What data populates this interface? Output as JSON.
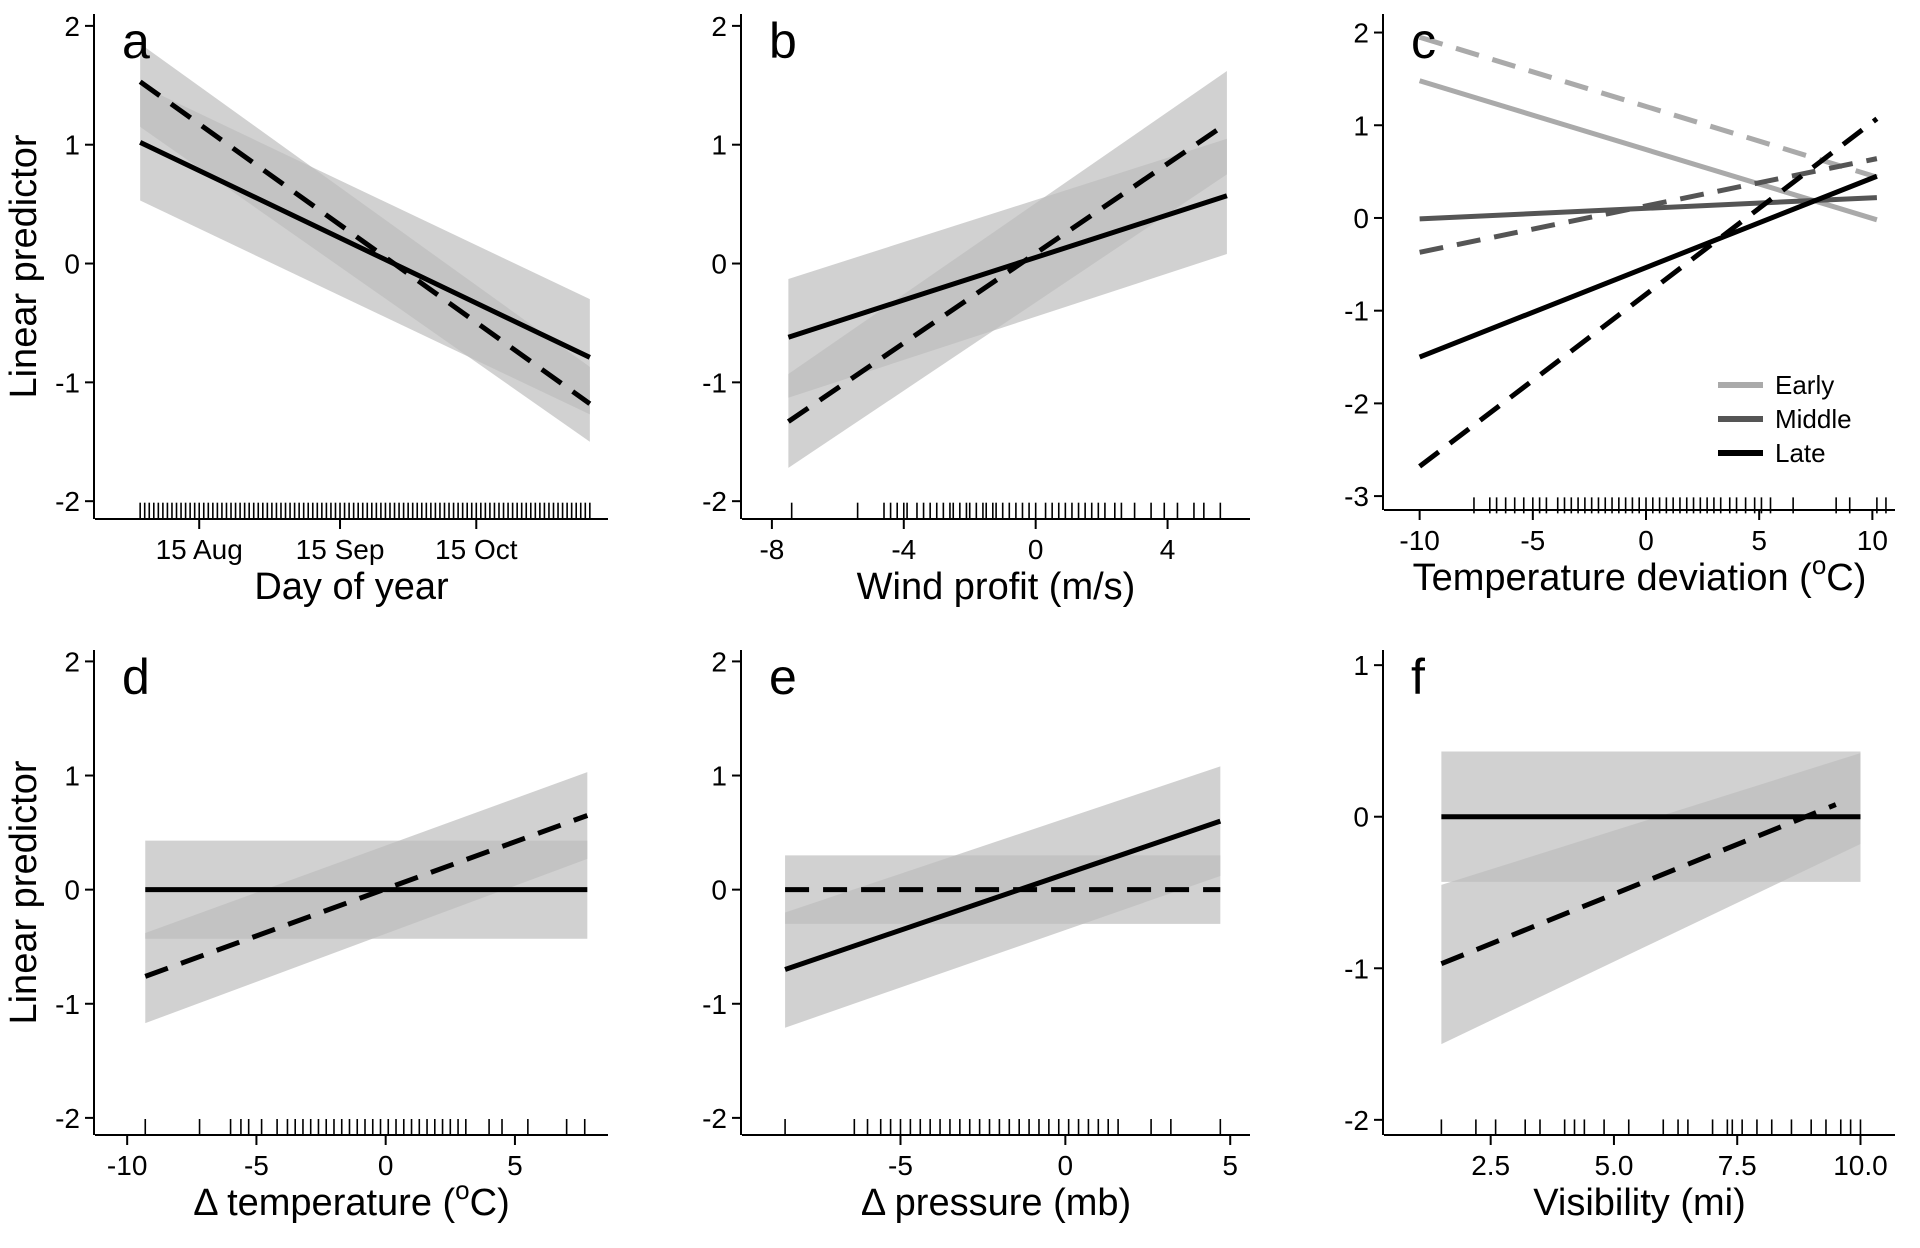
{
  "figure": {
    "ylabel": "Linear predictor"
  },
  "chart_data": [
    {
      "panel": "a",
      "type": "line",
      "xlabel": "Day of year",
      "ylabel": "Linear predictor",
      "xlim": [
        210,
        317
      ],
      "ylim": [
        -2.15,
        2.1
      ],
      "xticks": [
        {
          "v": 227,
          "label": "15 Aug"
        },
        {
          "v": 258,
          "label": "15 Sep"
        },
        {
          "v": 288,
          "label": "15 Oct"
        }
      ],
      "yticks": [
        {
          "v": 2,
          "label": "2"
        },
        {
          "v": 1,
          "label": "1"
        },
        {
          "v": 0,
          "label": "0"
        },
        {
          "v": -1,
          "label": "-1"
        },
        {
          "v": -2,
          "label": "-2"
        }
      ],
      "bands": [
        {
          "x": [
            214,
            313
          ],
          "lo": [
            0.53,
            -1.27
          ],
          "hi": [
            1.5,
            -0.3
          ],
          "color": "#bdbdbd"
        },
        {
          "x": [
            214,
            313
          ],
          "lo": [
            1.15,
            -1.5
          ],
          "hi": [
            1.85,
            -0.87
          ],
          "color": "#bdbdbd"
        }
      ],
      "series": [
        {
          "style": "solid",
          "color": "#000000",
          "x": [
            214,
            313
          ],
          "y": [
            1.02,
            -0.79
          ]
        },
        {
          "style": "dashed",
          "color": "#000000",
          "x": [
            214,
            313
          ],
          "y": [
            1.53,
            -1.18
          ]
        }
      ],
      "rug": {
        "y": -2.08,
        "x": [
          214,
          215,
          216,
          217,
          218,
          219,
          220,
          221,
          222,
          223,
          224,
          225,
          226,
          227,
          228,
          229,
          230,
          231,
          232,
          233,
          234,
          235,
          236,
          237,
          238,
          239,
          240,
          241,
          242,
          243,
          244,
          245,
          246,
          247,
          248,
          249,
          250,
          251,
          252,
          253,
          254,
          255,
          256,
          257,
          258,
          259,
          260,
          261,
          262,
          263,
          264,
          265,
          266,
          267,
          268,
          269,
          270,
          271,
          272,
          273,
          274,
          275,
          276,
          277,
          278,
          279,
          280,
          281,
          282,
          283,
          284,
          285,
          286,
          287,
          288,
          289,
          290,
          291,
          292,
          293,
          294,
          295,
          296,
          297,
          298,
          299,
          300,
          301,
          302,
          303,
          304,
          305,
          306,
          307,
          308,
          309,
          310,
          311,
          312,
          313
        ]
      }
    },
    {
      "panel": "b",
      "type": "line",
      "xlabel": "Wind profit (m/s)",
      "ylabel": "",
      "xlim": [
        -8.3,
        6.5
      ],
      "ylim": [
        -2.15,
        2.1
      ],
      "xticks": [
        {
          "v": -8,
          "label": "-8"
        },
        {
          "v": -4,
          "label": "-4"
        },
        {
          "v": 0,
          "label": "0"
        },
        {
          "v": 4,
          "label": "4"
        }
      ],
      "yticks": [
        {
          "v": 2,
          "label": "2"
        },
        {
          "v": 1,
          "label": "1"
        },
        {
          "v": 0,
          "label": "0"
        },
        {
          "v": -1,
          "label": "-1"
        },
        {
          "v": -2,
          "label": "-2"
        }
      ],
      "bands": [
        {
          "x": [
            -7.5,
            5.8
          ],
          "lo": [
            -1.13,
            0.08
          ],
          "hi": [
            -0.13,
            1.05
          ],
          "color": "#bdbdbd"
        },
        {
          "x": [
            -7.5,
            5.8
          ],
          "lo": [
            -1.72,
            0.75
          ],
          "hi": [
            -0.93,
            1.62
          ],
          "color": "#bdbdbd"
        }
      ],
      "series": [
        {
          "style": "solid",
          "color": "#000000",
          "x": [
            -7.5,
            5.8
          ],
          "y": [
            -0.62,
            0.57
          ]
        },
        {
          "style": "dashed",
          "color": "#000000",
          "x": [
            -7.5,
            5.8
          ],
          "y": [
            -1.33,
            1.18
          ]
        }
      ],
      "rug": {
        "y": -2.08,
        "x": [
          -7.4,
          -5.4,
          -4.6,
          -4.4,
          -4.2,
          -4.0,
          -3.9,
          -3.6,
          -3.4,
          -3.2,
          -3.0,
          -2.8,
          -2.6,
          -2.5,
          -2.3,
          -2.1,
          -2.0,
          -1.8,
          -1.6,
          -1.5,
          -1.3,
          -1.2,
          -1.0,
          -0.8,
          -0.6,
          -0.4,
          -0.2,
          0.0,
          0.3,
          0.5,
          0.7,
          0.9,
          1.1,
          1.3,
          1.5,
          1.7,
          1.9,
          2.1,
          2.4,
          2.6,
          3.0,
          3.5,
          3.9,
          4.3,
          4.8,
          5.1,
          5.6
        ]
      }
    },
    {
      "panel": "c",
      "type": "line",
      "xlabel": "Temperature deviation (°C)",
      "ylabel": "",
      "xlim": [
        -11,
        11
      ],
      "ylim": [
        -3.15,
        2.2
      ],
      "xticks": [
        {
          "v": -10,
          "label": "-10"
        },
        {
          "v": -5,
          "label": "-5"
        },
        {
          "v": 0,
          "label": "0"
        },
        {
          "v": 5,
          "label": "5"
        },
        {
          "v": 10,
          "label": "10"
        }
      ],
      "yticks": [
        {
          "v": 2,
          "label": "2"
        },
        {
          "v": 1,
          "label": "1"
        },
        {
          "v": 0,
          "label": "0"
        },
        {
          "v": -1,
          "label": "-1"
        },
        {
          "v": -2,
          "label": "-2"
        },
        {
          "v": -3,
          "label": "-3"
        }
      ],
      "bands": [],
      "series": [
        {
          "name": "Early",
          "style": "solid",
          "color": "#aaaaaa",
          "x": [
            -10,
            10.2
          ],
          "y": [
            1.48,
            -0.02
          ]
        },
        {
          "name": "",
          "style": "dashed",
          "color": "#aaaaaa",
          "x": [
            -10,
            10.2
          ],
          "y": [
            1.95,
            0.44
          ]
        },
        {
          "name": "Middle",
          "style": "solid",
          "color": "#555555",
          "x": [
            -10,
            10.2
          ],
          "y": [
            -0.01,
            0.22
          ]
        },
        {
          "name": "",
          "style": "dashed",
          "color": "#555555",
          "x": [
            -10,
            10.2
          ],
          "y": [
            -0.37,
            0.64
          ]
        },
        {
          "name": "Late",
          "style": "solid",
          "color": "#000000",
          "x": [
            -10,
            10.2
          ],
          "y": [
            -1.5,
            0.45
          ]
        },
        {
          "name": "",
          "style": "dashed",
          "color": "#000000",
          "x": [
            -10,
            10.2
          ],
          "y": [
            -2.68,
            1.07
          ]
        }
      ],
      "legend": {
        "position": "bottom-right",
        "entries": [
          {
            "label": "Early",
            "color": "#aaaaaa"
          },
          {
            "label": "Middle",
            "color": "#555555"
          },
          {
            "label": "Late",
            "color": "#000000"
          }
        ]
      },
      "rug": {
        "y": -3.1,
        "x": [
          -7.6,
          -6.9,
          -6.6,
          -6.2,
          -5.8,
          -5.4,
          -5.0,
          -4.7,
          -4.4,
          -3.9,
          -3.6,
          -3.3,
          -3.0,
          -2.7,
          -2.4,
          -2.1,
          -1.8,
          -1.5,
          -1.2,
          -0.9,
          -0.6,
          -0.3,
          0.0,
          0.3,
          0.6,
          0.9,
          1.2,
          1.5,
          1.8,
          2.1,
          2.4,
          2.7,
          3.0,
          3.3,
          3.7,
          4.0,
          4.4,
          4.8,
          5.1,
          5.5,
          6.5,
          8.4,
          9.0,
          10.2,
          10.6
        ]
      }
    },
    {
      "panel": "d",
      "type": "line",
      "xlabel": "Δ temperature (°C)",
      "ylabel": "Linear predictor",
      "xlim": [
        -10.2,
        8.6
      ],
      "ylim": [
        -2.15,
        2.1
      ],
      "xticks": [
        {
          "v": -10,
          "label": "-10"
        },
        {
          "v": -5,
          "label": "-5"
        },
        {
          "v": 0,
          "label": "0"
        },
        {
          "v": 5,
          "label": "5"
        }
      ],
      "yticks": [
        {
          "v": 2,
          "label": "2"
        },
        {
          "v": 1,
          "label": "1"
        },
        {
          "v": 0,
          "label": "0"
        },
        {
          "v": -1,
          "label": "-1"
        },
        {
          "v": -2,
          "label": "-2"
        }
      ],
      "bands": [
        {
          "x": [
            -9.3,
            7.8
          ],
          "lo": [
            -0.43,
            -0.43
          ],
          "hi": [
            0.43,
            0.43
          ],
          "color": "#bdbdbd"
        },
        {
          "x": [
            -9.3,
            7.8
          ],
          "lo": [
            -1.17,
            0.27
          ],
          "hi": [
            -0.38,
            1.03
          ],
          "color": "#bdbdbd"
        }
      ],
      "series": [
        {
          "style": "solid",
          "color": "#000000",
          "x": [
            -9.3,
            7.8
          ],
          "y": [
            0,
            0
          ]
        },
        {
          "style": "dashed",
          "color": "#000000",
          "x": [
            -9.3,
            7.8
          ],
          "y": [
            -0.76,
            0.65
          ]
        }
      ],
      "rug": {
        "y": -2.08,
        "x": [
          -9.3,
          -7.2,
          -6.0,
          -5.6,
          -5.3,
          -4.8,
          -4.2,
          -3.8,
          -3.5,
          -3.2,
          -2.9,
          -2.6,
          -2.3,
          -2.0,
          -1.7,
          -1.4,
          -1.1,
          -0.8,
          -0.5,
          -0.2,
          0.1,
          0.4,
          0.7,
          1.0,
          1.3,
          1.6,
          1.9,
          2.2,
          2.5,
          2.8,
          3.1,
          4.0,
          4.5,
          5.5,
          7.0,
          7.7
        ]
      }
    },
    {
      "panel": "e",
      "type": "line",
      "xlabel": "Δ pressure (mb)",
      "ylabel": "",
      "xlim": [
        -9.2,
        5.6
      ],
      "ylim": [
        -2.15,
        2.1
      ],
      "xticks": [
        {
          "v": -5,
          "label": "-5"
        },
        {
          "v": 0,
          "label": "0"
        },
        {
          "v": 5,
          "label": "5"
        }
      ],
      "yticks": [
        {
          "v": 2,
          "label": "2"
        },
        {
          "v": 1,
          "label": "1"
        },
        {
          "v": 0,
          "label": "0"
        },
        {
          "v": -1,
          "label": "-1"
        },
        {
          "v": -2,
          "label": "-2"
        }
      ],
      "bands": [
        {
          "x": [
            -8.5,
            4.7
          ],
          "lo": [
            -0.3,
            -0.3
          ],
          "hi": [
            0.3,
            0.3
          ],
          "color": "#bdbdbd"
        },
        {
          "x": [
            -8.5,
            4.7
          ],
          "lo": [
            -1.21,
            0.12
          ],
          "hi": [
            -0.2,
            1.08
          ],
          "color": "#bdbdbd"
        }
      ],
      "series": [
        {
          "style": "solid",
          "color": "#000000",
          "x": [
            -8.5,
            4.7
          ],
          "y": [
            -0.7,
            0.6
          ]
        },
        {
          "style": "dashed",
          "color": "#000000",
          "x": [
            -8.5,
            4.7
          ],
          "y": [
            0,
            0
          ]
        }
      ],
      "rug": {
        "y": -2.08,
        "x": [
          -8.5,
          -6.4,
          -6.0,
          -5.6,
          -5.3,
          -5.0,
          -4.7,
          -4.4,
          -4.1,
          -3.8,
          -3.5,
          -3.2,
          -2.9,
          -2.6,
          -2.3,
          -2.0,
          -1.7,
          -1.4,
          -1.1,
          -0.8,
          -0.5,
          -0.2,
          0.1,
          0.4,
          0.7,
          1.0,
          1.3,
          1.6,
          2.6,
          3.2,
          4.7
        ]
      }
    },
    {
      "panel": "f",
      "type": "line",
      "xlabel": "Visibility (mi)",
      "ylabel": "",
      "xlim": [
        0.6,
        10.7
      ],
      "ylim": [
        -2.1,
        1.1
      ],
      "xticks": [
        {
          "v": 2.5,
          "label": "2.5"
        },
        {
          "v": 5.0,
          "label": "5.0"
        },
        {
          "v": 7.5,
          "label": "7.5"
        },
        {
          "v": 10.0,
          "label": "10.0"
        }
      ],
      "yticks": [
        {
          "v": 1,
          "label": "1"
        },
        {
          "v": 0,
          "label": "0"
        },
        {
          "v": -1,
          "label": "-1"
        },
        {
          "v": -2,
          "label": "-2"
        }
      ],
      "bands": [
        {
          "x": [
            1.5,
            10
          ],
          "lo": [
            -0.43,
            -0.43
          ],
          "hi": [
            0.43,
            0.43
          ],
          "color": "#bdbdbd"
        },
        {
          "x": [
            1.5,
            10
          ],
          "lo": [
            -1.5,
            -0.18
          ],
          "hi": [
            -0.45,
            0.42
          ],
          "color": "#bdbdbd"
        }
      ],
      "series": [
        {
          "style": "solid",
          "color": "#000000",
          "x": [
            1.5,
            10
          ],
          "y": [
            0,
            0
          ]
        },
        {
          "style": "dashed",
          "color": "#000000",
          "x": [
            1.5,
            9.5
          ],
          "y": [
            -0.97,
            0.08
          ]
        }
      ],
      "rug": {
        "y": -2.05,
        "x": [
          1.5,
          2.2,
          2.6,
          3.2,
          3.5,
          4.0,
          4.2,
          4.4,
          4.8,
          5.3,
          6.0,
          6.3,
          6.5,
          7.0,
          7.3,
          7.4,
          7.6,
          7.9,
          8.2,
          8.6,
          9.0,
          9.3,
          9.6,
          9.8,
          10.0
        ]
      }
    }
  ]
}
